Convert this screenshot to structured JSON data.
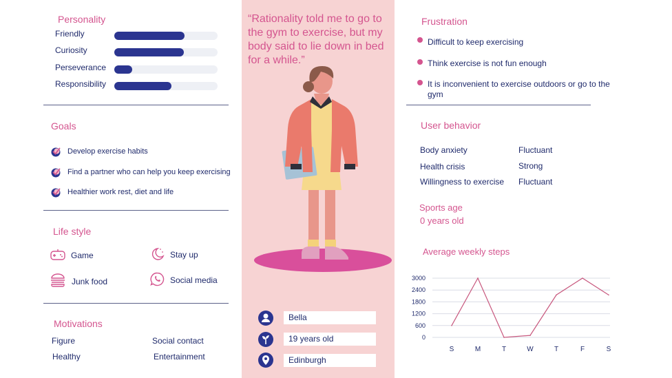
{
  "personality": {
    "title": "Personality",
    "traits": [
      {
        "label": "Friendly",
        "level": 0.68
      },
      {
        "label": "Curiosity",
        "level": 0.67
      },
      {
        "label": "Perseverance",
        "level": 0.17
      },
      {
        "label": "Responsibility",
        "level": 0.55
      }
    ]
  },
  "goals": {
    "title": "Goals",
    "items": [
      "Develop exercise habits",
      "Find a partner who can help you keep exercising",
      "Healthier work rest, diet and life"
    ]
  },
  "lifestyle": {
    "title": "Life style",
    "items": [
      {
        "label": "Game",
        "icon": "gamepad-icon"
      },
      {
        "label": "Stay up",
        "icon": "moon-icon"
      },
      {
        "label": "Junk food",
        "icon": "burger-icon"
      },
      {
        "label": "Social media",
        "icon": "chat-icon"
      }
    ]
  },
  "motivations": {
    "title": "Motivations",
    "items": [
      "Figure",
      "Social contact",
      "Healthy",
      "Entertainment"
    ]
  },
  "quote": "“Rationality told me to go to the gym to exercise, but my body said to lie down in bed for a while.”",
  "profile": {
    "name": "Bella",
    "age": "19 years old",
    "location": "Edinburgh"
  },
  "frustration": {
    "title": "Frustration",
    "items": [
      "Difficult to keep exercising",
      "Think exercise is not fun enough",
      "It is inconvenient to exercise outdoors or go to the gym"
    ]
  },
  "user_behavior": {
    "title": "User behavior",
    "rows": [
      {
        "label": "Body anxiety",
        "value": "Fluctuant"
      },
      {
        "label": "Health crisis",
        "value": "Strong"
      },
      {
        "label": "Willingness to exercise",
        "value": "Fluctuant"
      }
    ]
  },
  "sports_age": {
    "title": "Sports age",
    "value": "0 years old"
  },
  "chart_title": "Average weekly steps",
  "chart_data": {
    "type": "line",
    "categories": [
      "S",
      "M",
      "T",
      "W",
      "T",
      "F",
      "S"
    ],
    "values": [
      600,
      3000,
      0,
      100,
      2150,
      3000,
      2150
    ],
    "yticks": [
      0,
      600,
      1200,
      1800,
      2400,
      3000
    ],
    "ylim": [
      0,
      3000
    ],
    "grid": true,
    "color": "#c8587e"
  },
  "colors": {
    "accent": "#d4558f",
    "navy": "#2b3590",
    "mid_panel": "#f7d3d3"
  }
}
